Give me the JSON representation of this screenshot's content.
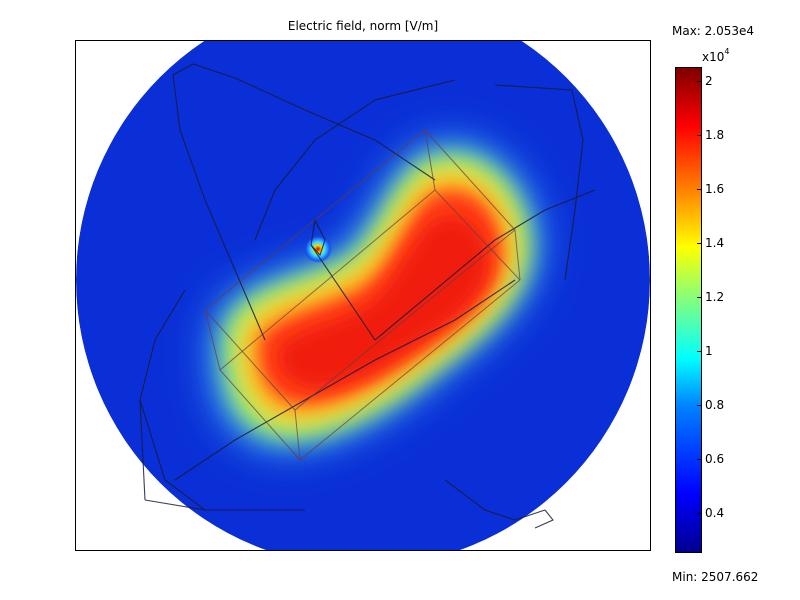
{
  "chart_data": {
    "type": "heatmap",
    "title": "Electric field, norm [V/m]",
    "max_label": "Max: 2.053e4",
    "min_label": "Min: 2507.662",
    "max_value": 20530,
    "min_value": 2507.662,
    "colormap": "jet",
    "colorbar": {
      "multiplier_base": "x10",
      "multiplier_exp": "4",
      "ticks": [
        {
          "value": 0.4,
          "label": "0.4"
        },
        {
          "value": 0.6,
          "label": "0.6"
        },
        {
          "value": 0.8,
          "label": "0.8"
        },
        {
          "value": 1.0,
          "label": "1"
        },
        {
          "value": 1.2,
          "label": "1.2"
        },
        {
          "value": 1.4,
          "label": "1.4"
        },
        {
          "value": 1.6,
          "label": "1.6"
        },
        {
          "value": 1.8,
          "label": "1.8"
        },
        {
          "value": 2.0,
          "label": "2"
        }
      ]
    },
    "colors": {
      "background_field": "#0a2fd6",
      "frame": "#000000"
    }
  }
}
